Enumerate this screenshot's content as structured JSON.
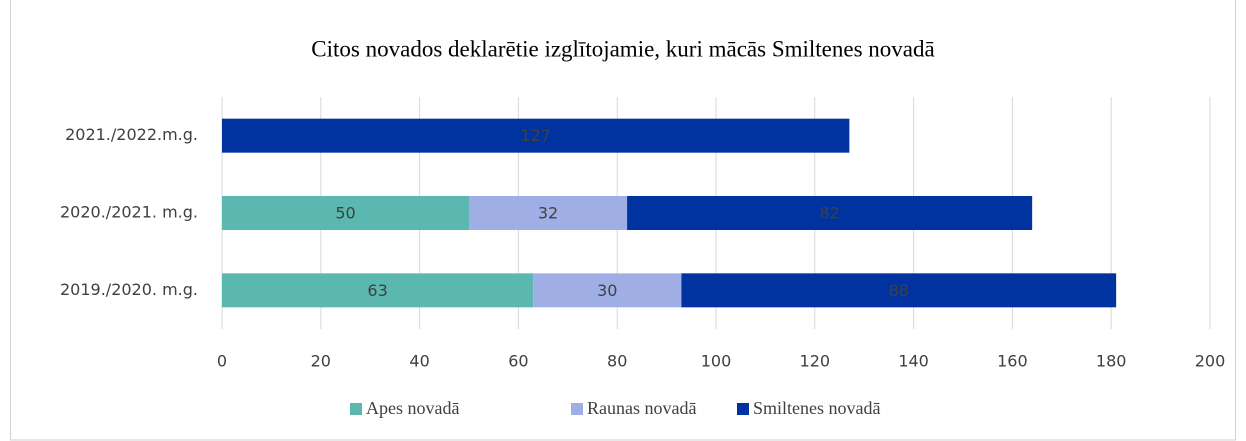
{
  "chart_data": {
    "type": "stacked-bar-horizontal",
    "title": "Citos novados deklarētie izglītojamie, kuri mācās Smiltenes novadā",
    "categories": [
      "2021./2022.m.g.",
      "2020./2021. m.g.",
      "2019./2020. m.g."
    ],
    "series": [
      {
        "name": "Apes novadā",
        "color": "#5bb8b0",
        "values": [
          null,
          50,
          63
        ]
      },
      {
        "name": "Raunas novadā",
        "color": "#a0aee6",
        "values": [
          null,
          32,
          30
        ]
      },
      {
        "name": "Smiltenes novadā",
        "color": "#0033a0",
        "values": [
          127,
          82,
          88
        ]
      }
    ],
    "xlim": [
      0,
      200
    ],
    "xticks": [
      0,
      20,
      40,
      60,
      80,
      100,
      120,
      140,
      160,
      180,
      200
    ],
    "grid": true,
    "legend": "bottom"
  }
}
